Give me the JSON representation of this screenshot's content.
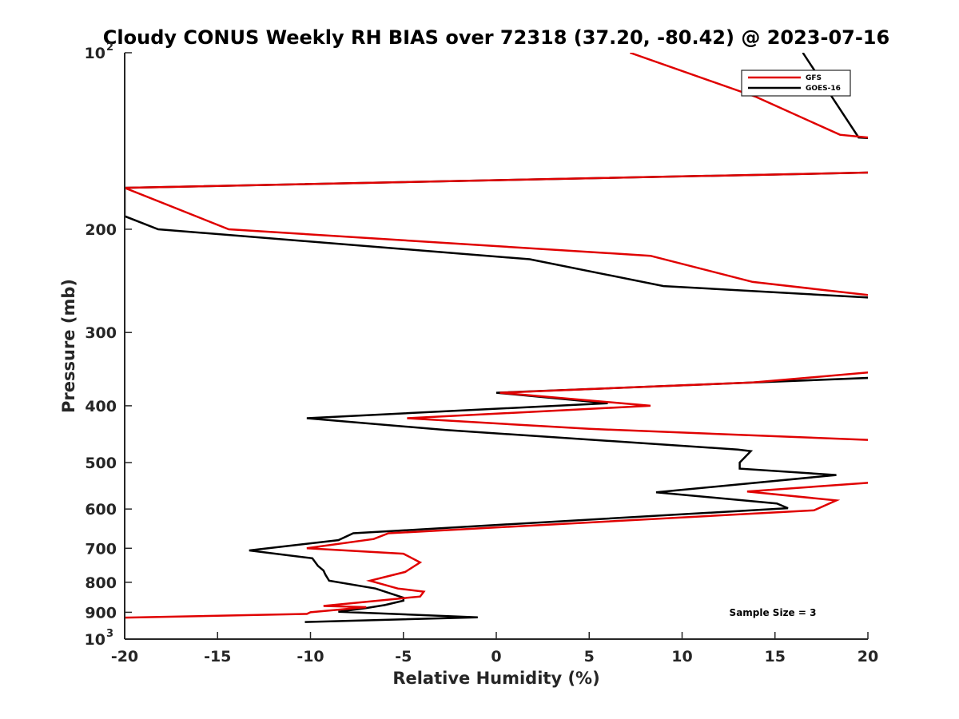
{
  "chart_data": {
    "type": "line",
    "title": "Cloudy CONUS Weekly RH BIAS over 72318 (37.20, -80.42) @ 2023-07-16",
    "xlabel": "Relative Humidity (%)",
    "ylabel": "Pressure (mb)",
    "xlim": [
      -20,
      20
    ],
    "ylim": [
      100,
      1000
    ],
    "yscale": "log",
    "y_reversed": true,
    "grid": false,
    "legend_position": "top-right",
    "annotation": "Sample Size = 3",
    "x_ticks": [
      "-20",
      "-15",
      "-10",
      "-5",
      "0",
      "5",
      "10",
      "15",
      "20"
    ],
    "y_ticks": [
      {
        "value": 100,
        "base": "10",
        "exp": "2"
      },
      {
        "value": 200,
        "label": "200"
      },
      {
        "value": 300,
        "label": "300"
      },
      {
        "value": 400,
        "label": "400"
      },
      {
        "value": 500,
        "label": "500"
      },
      {
        "value": 600,
        "label": "600"
      },
      {
        "value": 700,
        "label": "700"
      },
      {
        "value": 800,
        "label": "800"
      },
      {
        "value": 900,
        "label": "900"
      },
      {
        "value": 1000,
        "base": "10",
        "exp": "3"
      }
    ],
    "series": [
      {
        "name": "GOES-16",
        "color": "#000000",
        "points": [
          [
            16.5,
            100
          ],
          [
            19.5,
            139.5
          ],
          [
            20.5,
            140
          ],
          [
            20.5,
            160
          ],
          [
            -20,
            170
          ],
          [
            -20,
            190
          ],
          [
            -18.2,
            200
          ],
          [
            1.8,
            225
          ],
          [
            9.0,
            250
          ],
          [
            20.5,
            262
          ],
          [
            20.5,
            358
          ],
          [
            0.0,
            380
          ],
          [
            6.0,
            396
          ],
          [
            -10.2,
            420
          ],
          [
            -2.7,
            440
          ],
          [
            13.0,
            475
          ],
          [
            13.7,
            478
          ],
          [
            13.1,
            500
          ],
          [
            13.1,
            512
          ],
          [
            18.3,
            525
          ],
          [
            8.6,
            562
          ],
          [
            15.1,
            587
          ],
          [
            15.7,
            598
          ],
          [
            -7.7,
            660
          ],
          [
            -8.5,
            678
          ],
          [
            -13.3,
            706
          ],
          [
            -9.9,
            728
          ],
          [
            -9.6,
            750
          ],
          [
            -9.3,
            764
          ],
          [
            -9.2,
            776
          ],
          [
            -9.0,
            795
          ],
          [
            -6.5,
            820
          ],
          [
            -5.0,
            850
          ],
          [
            -5.0,
            860
          ],
          [
            -6.0,
            875
          ],
          [
            -7.0,
            885
          ],
          [
            -8.5,
            898
          ],
          [
            -1.0,
            918
          ],
          [
            -10.3,
            935
          ]
        ]
      },
      {
        "name": "GFS",
        "color": "#e00000",
        "points": [
          [
            7.2,
            100
          ],
          [
            14.0,
            119
          ],
          [
            18.5,
            138
          ],
          [
            20.5,
            140
          ],
          [
            20.5,
            160
          ],
          [
            -20,
            170
          ],
          [
            -14.4,
            200
          ],
          [
            8.3,
            222
          ],
          [
            13.8,
            246
          ],
          [
            20.5,
            260
          ],
          [
            20.5,
            350
          ],
          [
            13.8,
            365
          ],
          [
            0.2,
            380
          ],
          [
            8.3,
            400
          ],
          [
            -4.8,
            420
          ],
          [
            5.0,
            438
          ],
          [
            20.5,
            458
          ],
          [
            20.5,
            540
          ],
          [
            13.5,
            560
          ],
          [
            18.3,
            580
          ],
          [
            17.1,
            603
          ],
          [
            -5.8,
            660
          ],
          [
            -6.6,
            675
          ],
          [
            -10.2,
            700
          ],
          [
            -5.0,
            715
          ],
          [
            -4.1,
            740
          ],
          [
            -4.9,
            768
          ],
          [
            -6.8,
            795
          ],
          [
            -5.3,
            820
          ],
          [
            -3.9,
            830
          ],
          [
            -4.1,
            846
          ],
          [
            -9.3,
            878
          ],
          [
            -7.0,
            882
          ],
          [
            -10.0,
            900
          ],
          [
            -10.2,
            906
          ],
          [
            -20.5,
            920
          ]
        ]
      }
    ]
  }
}
